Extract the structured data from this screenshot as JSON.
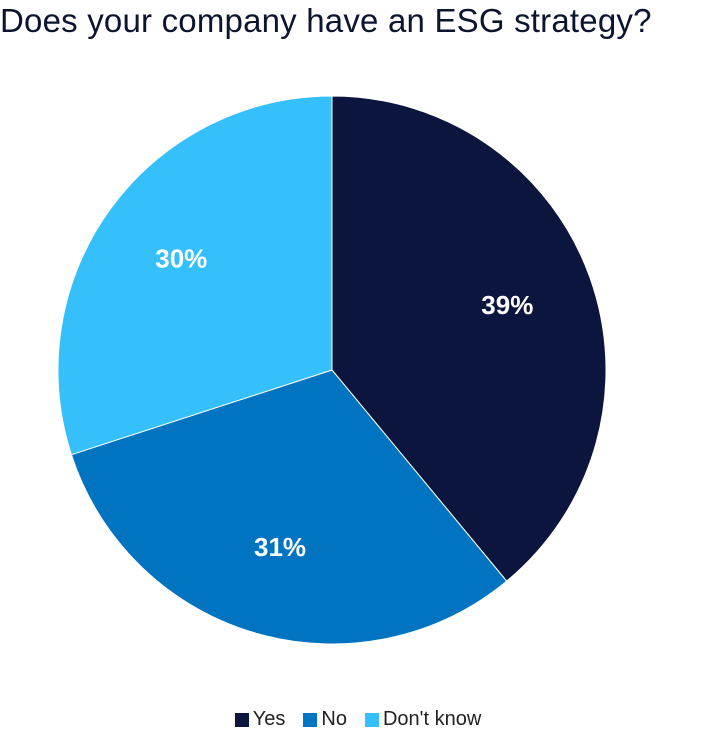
{
  "chart_data": {
    "type": "pie",
    "title": "Does your company have an ESG strategy?",
    "categories": [
      "Yes",
      "No",
      "Don't know"
    ],
    "values": [
      39,
      31,
      30
    ],
    "data_labels": [
      "39%",
      "31%",
      "30%"
    ],
    "colors": [
      "#0c153d",
      "#0074c1",
      "#36c0fb"
    ],
    "start_angle": "12 o'clock, clockwise",
    "legend_position": "bottom"
  }
}
